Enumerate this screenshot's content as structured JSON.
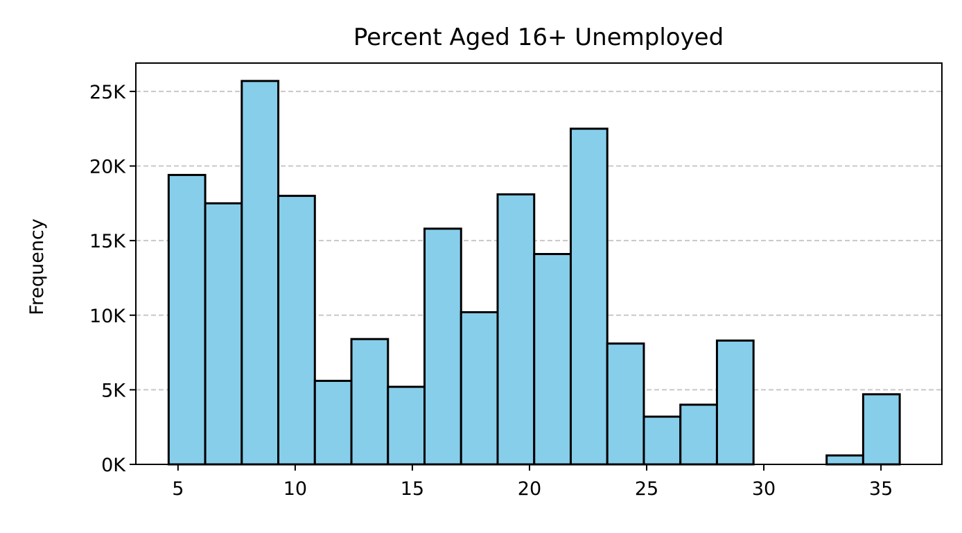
{
  "chart_data": {
    "type": "bar",
    "title": "Percent Aged 16+ Unemployed",
    "xlabel": "",
    "ylabel": "Frequency",
    "xlim": [
      3.2,
      37.6
    ],
    "ylim": [
      0,
      26900
    ],
    "x_ticks": [
      5,
      10,
      15,
      20,
      25,
      30,
      35
    ],
    "y_ticks": [
      0,
      5000,
      10000,
      15000,
      20000,
      25000
    ],
    "y_tick_labels": [
      "0K",
      "5K",
      "10K",
      "15K",
      "20K",
      "25K"
    ],
    "grid": "y-dashed",
    "bin_edges": [
      4.6,
      6.16,
      7.72,
      9.28,
      10.84,
      12.4,
      13.96,
      15.52,
      17.08,
      18.64,
      20.2,
      21.76,
      23.32,
      24.88,
      26.44,
      28.0,
      29.56,
      31.12,
      32.68,
      34.24,
      35.8
    ],
    "values": [
      19400,
      17500,
      25700,
      18000,
      5600,
      8400,
      5200,
      15800,
      10200,
      18100,
      14100,
      22500,
      8100,
      3200,
      4000,
      8300,
      0,
      0,
      600,
      4700
    ],
    "bar_color": "#87CEEB",
    "edge_color": "#000000"
  }
}
